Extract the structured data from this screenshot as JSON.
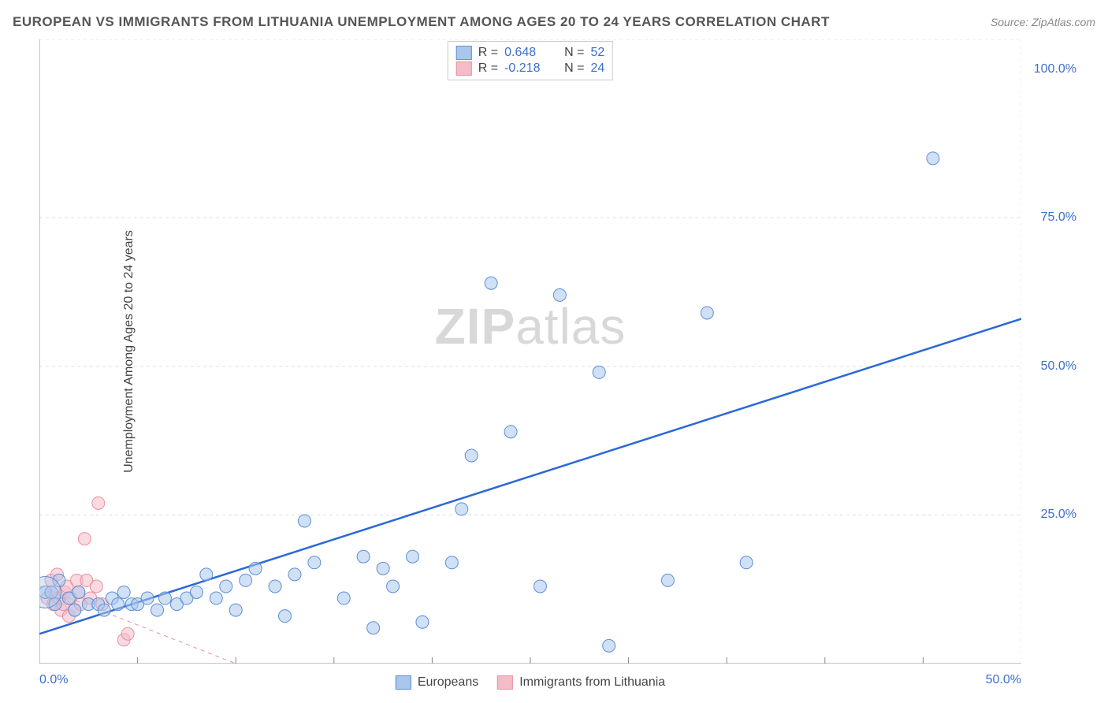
{
  "title": "EUROPEAN VS IMMIGRANTS FROM LITHUANIA UNEMPLOYMENT AMONG AGES 20 TO 24 YEARS CORRELATION CHART",
  "source": "Source: ZipAtlas.com",
  "y_axis_label": "Unemployment Among Ages 20 to 24 years",
  "watermark": {
    "bold": "ZIP",
    "rest": "atlas"
  },
  "chart": {
    "type": "scatter",
    "background_color": "#ffffff",
    "axis_color": "#888888",
    "grid_color": "#e0e0e0",
    "grid_dash": "4,4",
    "xlim": [
      0,
      50
    ],
    "ylim": [
      0,
      105
    ],
    "x_ticks": [
      0,
      50
    ],
    "x_tick_labels": [
      "0.0%",
      "50.0%"
    ],
    "y_ticks": [
      25,
      50,
      75,
      100
    ],
    "y_tick_labels": [
      "25.0%",
      "50.0%",
      "75.0%",
      "100.0%"
    ],
    "y_gridlines": [
      25,
      50,
      75,
      105
    ],
    "x_minor_ticks": [
      5,
      10,
      15,
      20,
      25,
      30,
      35,
      40,
      45
    ],
    "tick_label_color": "#3b6fc8",
    "tick_label_fontsize": 16
  },
  "series": {
    "europeans": {
      "label": "Europeans",
      "color_fill": "#a9c6ec",
      "color_stroke": "#5b8fd6",
      "fill_opacity": 0.55,
      "marker_r": 8,
      "R": "0.648",
      "N": "52",
      "regression": {
        "x1": 0,
        "y1": 5,
        "x2": 50,
        "y2": 58,
        "stroke": "#2b68d8",
        "width": 2.5
      },
      "points": [
        [
          0.3,
          12
        ],
        [
          0.6,
          12
        ],
        [
          0.8,
          10
        ],
        [
          1.0,
          14
        ],
        [
          1.5,
          11
        ],
        [
          1.8,
          9
        ],
        [
          2.0,
          12
        ],
        [
          2.5,
          10
        ],
        [
          3.0,
          10
        ],
        [
          3.3,
          9
        ],
        [
          3.7,
          11
        ],
        [
          4.0,
          10
        ],
        [
          4.3,
          12
        ],
        [
          4.7,
          10
        ],
        [
          5.0,
          10
        ],
        [
          5.5,
          11
        ],
        [
          6.0,
          9
        ],
        [
          6.4,
          11
        ],
        [
          7.0,
          10
        ],
        [
          7.5,
          11
        ],
        [
          8.0,
          12
        ],
        [
          8.5,
          15
        ],
        [
          9.0,
          11
        ],
        [
          9.5,
          13
        ],
        [
          10.0,
          9
        ],
        [
          10.5,
          14
        ],
        [
          11.0,
          16
        ],
        [
          12.0,
          13
        ],
        [
          12.5,
          8
        ],
        [
          13.0,
          15
        ],
        [
          13.5,
          24
        ],
        [
          14.0,
          17
        ],
        [
          15.5,
          11
        ],
        [
          16.5,
          18
        ],
        [
          17.0,
          6
        ],
        [
          17.5,
          16
        ],
        [
          18.0,
          13
        ],
        [
          19.0,
          18
        ],
        [
          19.5,
          7
        ],
        [
          21.0,
          17
        ],
        [
          21.5,
          26
        ],
        [
          22.0,
          35
        ],
        [
          23.0,
          64
        ],
        [
          24.0,
          39
        ],
        [
          25.5,
          13
        ],
        [
          26.5,
          62
        ],
        [
          28.5,
          49
        ],
        [
          29.0,
          3
        ],
        [
          32.0,
          14
        ],
        [
          34.0,
          59
        ],
        [
          36.0,
          17
        ],
        [
          45.5,
          85
        ]
      ],
      "large_point": {
        "x": 0.3,
        "y": 12,
        "r": 20
      }
    },
    "lithuania": {
      "label": "Immigrants from Lithuania",
      "color_fill": "#f4bcc7",
      "color_stroke": "#e78fa2",
      "fill_opacity": 0.55,
      "marker_r": 8,
      "R": "-0.218",
      "N": "24",
      "regression": {
        "x1": 0,
        "y1": 13,
        "x2": 10,
        "y2": 0,
        "stroke": "#e78fa2",
        "width": 1,
        "dash": "5,5"
      },
      "points": [
        [
          0.4,
          11
        ],
        [
          0.6,
          14
        ],
        [
          0.7,
          10
        ],
        [
          0.8,
          12
        ],
        [
          0.9,
          15
        ],
        [
          1.0,
          11
        ],
        [
          1.1,
          9
        ],
        [
          1.2,
          10
        ],
        [
          1.3,
          12
        ],
        [
          1.4,
          13
        ],
        [
          1.5,
          8
        ],
        [
          1.6,
          11
        ],
        [
          1.8,
          9
        ],
        [
          1.9,
          14
        ],
        [
          2.0,
          12
        ],
        [
          2.1,
          10
        ],
        [
          2.3,
          21
        ],
        [
          2.4,
          14
        ],
        [
          2.6,
          11
        ],
        [
          2.9,
          13
        ],
        [
          3.0,
          27
        ],
        [
          3.2,
          10
        ],
        [
          4.3,
          4
        ],
        [
          4.5,
          5
        ]
      ]
    }
  },
  "legend_top_label_r": "R =",
  "legend_top_label_n": "N ="
}
